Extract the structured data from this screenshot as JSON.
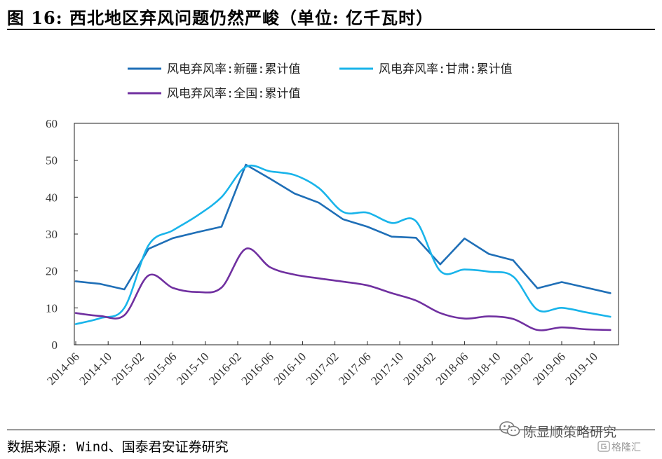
{
  "figure": {
    "title": "图 16:  西北地区弃风问题仍然严峻（单位:  亿千瓦时）",
    "source": "数据来源: Wind、国泰君安证券研究"
  },
  "watermark": {
    "main": "陈显顺策略研究",
    "sub": "格隆汇",
    "icon": "wechat-icon",
    "brand_icon": "gelonghui-logo-icon"
  },
  "chart_data": {
    "type": "line",
    "title": "",
    "xlabel": "",
    "ylabel": "",
    "ylim": [
      0,
      60
    ],
    "yticks": [
      0,
      10,
      20,
      30,
      40,
      50,
      60
    ],
    "grid": false,
    "legend_position": "top",
    "x_tick_labels": [
      "2014-06",
      "2014-10",
      "2015-02",
      "2015-06",
      "2015-10",
      "2016-02",
      "2016-06",
      "2016-10",
      "2017-02",
      "2017-06",
      "2017-10",
      "2018-02",
      "2018-06",
      "2018-10",
      "2019-02",
      "2019-06",
      "2019-10"
    ],
    "x": [
      "2014-06",
      "2014-09",
      "2014-12",
      "2015-03",
      "2015-06",
      "2015-09",
      "2015-12",
      "2016-03",
      "2016-06",
      "2016-09",
      "2016-12",
      "2017-03",
      "2017-06",
      "2017-09",
      "2017-12",
      "2018-03",
      "2018-06",
      "2018-09",
      "2018-12",
      "2019-03",
      "2019-06",
      "2019-09",
      "2019-12"
    ],
    "series": [
      {
        "name": "风电弃风率:新疆:累计值",
        "color": "#1f6fb7",
        "values": [
          17.2,
          16.5,
          15.0,
          26.0,
          28.9,
          30.5,
          32.0,
          48.8,
          45.0,
          41.0,
          38.5,
          34.0,
          32.0,
          29.3,
          29.0,
          21.8,
          28.8,
          24.6,
          22.9,
          15.3,
          17.0,
          15.5,
          14.0
        ]
      },
      {
        "name": "风电弃风率:甘肃:累计值",
        "color": "#19b4ea",
        "values": [
          5.6,
          7.2,
          10.0,
          27.0,
          31.0,
          35.0,
          40.0,
          48.2,
          47.0,
          46.0,
          42.5,
          36.0,
          35.8,
          33.0,
          33.5,
          20.0,
          20.4,
          19.8,
          18.5,
          9.5,
          10.0,
          8.8,
          7.6
        ]
      },
      {
        "name": "风电弃风率:全国:累计值",
        "color": "#7030a0",
        "values": [
          8.6,
          7.8,
          8.0,
          18.8,
          15.4,
          14.3,
          15.5,
          26.0,
          21.0,
          19.0,
          18.0,
          17.1,
          16.1,
          14.0,
          12.0,
          8.6,
          7.1,
          7.7,
          7.0,
          4.0,
          4.7,
          4.2,
          4.0
        ]
      }
    ]
  }
}
